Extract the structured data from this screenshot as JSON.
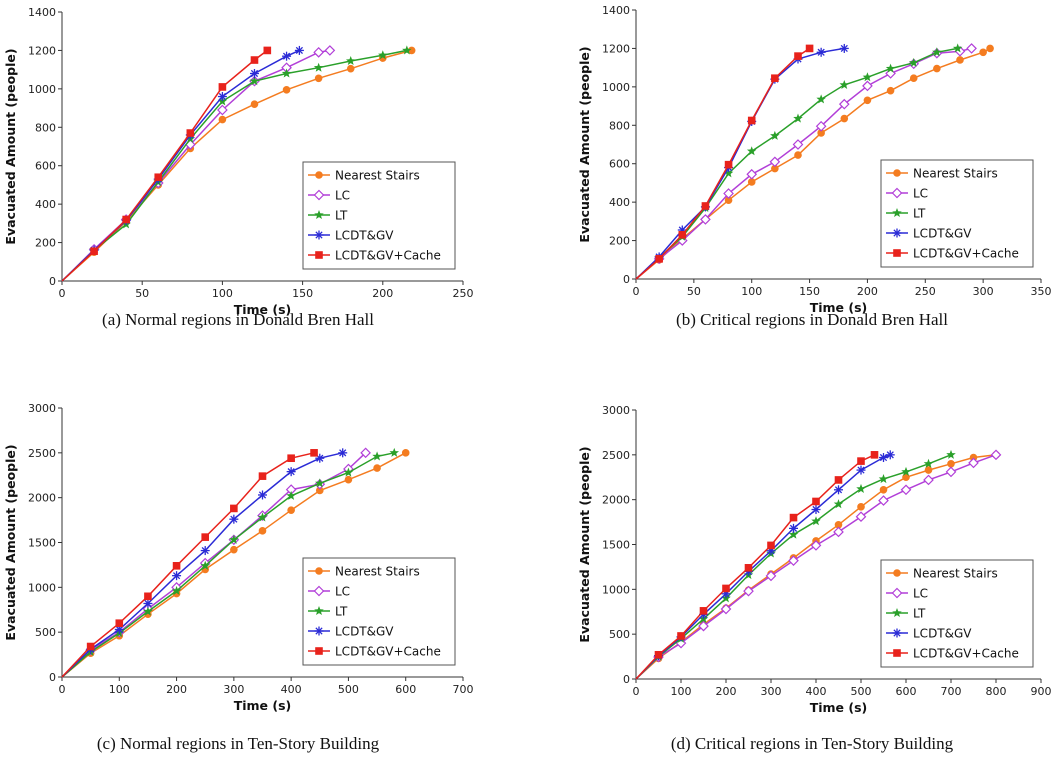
{
  "series_styles": [
    {
      "name": "Nearest Stairs",
      "color": "#f47c20",
      "marker": "circle"
    },
    {
      "name": "LC",
      "color": "#b23fd8",
      "marker": "diamond"
    },
    {
      "name": "LT",
      "color": "#2aa02a",
      "marker": "star"
    },
    {
      "name": "LCDT&GV",
      "color": "#2b2bd6",
      "marker": "asterisk"
    },
    {
      "name": "LCDT&GV+Cache",
      "color": "#e8221b",
      "marker": "square"
    }
  ],
  "chart_data": [
    {
      "type": "line",
      "caption": "(a) Normal regions in Donald Bren Hall",
      "xlabel": "Time (s)",
      "ylabel": "Evacuated Amount (people)",
      "xlim": [
        0,
        250
      ],
      "ylim": [
        0,
        1400
      ],
      "xticks": [
        0,
        50,
        100,
        150,
        200,
        250
      ],
      "yticks": [
        0,
        200,
        400,
        600,
        800,
        1000,
        1200,
        1400
      ],
      "grid": false,
      "legend": "bottom-right",
      "series": [
        {
          "name": "Nearest Stairs",
          "x": [
            0,
            20,
            40,
            60,
            80,
            100,
            120,
            140,
            160,
            180,
            200,
            218
          ],
          "y": [
            0,
            150,
            310,
            500,
            690,
            840,
            920,
            995,
            1055,
            1105,
            1160,
            1200
          ]
        },
        {
          "name": "LC",
          "x": [
            0,
            20,
            40,
            60,
            80,
            100,
            120,
            140,
            160,
            167
          ],
          "y": [
            0,
            165,
            320,
            510,
            710,
            890,
            1040,
            1110,
            1190,
            1200
          ]
        },
        {
          "name": "LT",
          "x": [
            0,
            20,
            40,
            60,
            80,
            100,
            120,
            140,
            160,
            180,
            200,
            215
          ],
          "y": [
            0,
            160,
            295,
            515,
            740,
            935,
            1040,
            1080,
            1110,
            1145,
            1175,
            1200
          ]
        },
        {
          "name": "LCDT&GV",
          "x": [
            0,
            20,
            40,
            60,
            80,
            100,
            120,
            140,
            148
          ],
          "y": [
            0,
            160,
            315,
            530,
            760,
            960,
            1080,
            1170,
            1200
          ]
        },
        {
          "name": "LCDT&GV+Cache",
          "x": [
            0,
            20,
            40,
            60,
            80,
            100,
            120,
            128
          ],
          "y": [
            0,
            155,
            320,
            540,
            770,
            1010,
            1150,
            1200
          ]
        }
      ]
    },
    {
      "type": "line",
      "caption": "(b) Critical regions in Donald Bren Hall",
      "xlabel": "Time (s)",
      "ylabel": "Evacuated Amount (people)",
      "xlim": [
        0,
        350
      ],
      "ylim": [
        0,
        1400
      ],
      "xticks": [
        0,
        50,
        100,
        150,
        200,
        250,
        300,
        350
      ],
      "yticks": [
        0,
        200,
        400,
        600,
        800,
        1000,
        1200,
        1400
      ],
      "grid": false,
      "legend": "bottom-right",
      "series": [
        {
          "name": "Nearest Stairs",
          "x": [
            0,
            20,
            40,
            60,
            80,
            100,
            120,
            140,
            160,
            180,
            200,
            220,
            240,
            260,
            280,
            300,
            306
          ],
          "y": [
            0,
            100,
            210,
            310,
            410,
            505,
            575,
            645,
            760,
            835,
            930,
            980,
            1045,
            1095,
            1140,
            1180,
            1200
          ]
        },
        {
          "name": "LC",
          "x": [
            0,
            20,
            40,
            60,
            80,
            100,
            120,
            140,
            160,
            180,
            200,
            220,
            240,
            260,
            280,
            290
          ],
          "y": [
            0,
            105,
            200,
            310,
            445,
            545,
            610,
            700,
            795,
            910,
            1005,
            1070,
            1120,
            1175,
            1185,
            1200
          ]
        },
        {
          "name": "LT",
          "x": [
            0,
            20,
            40,
            60,
            80,
            100,
            120,
            140,
            160,
            180,
            200,
            220,
            240,
            260,
            278
          ],
          "y": [
            0,
            110,
            220,
            370,
            550,
            665,
            745,
            835,
            935,
            1010,
            1050,
            1095,
            1125,
            1180,
            1200
          ]
        },
        {
          "name": "LCDT&GV",
          "x": [
            0,
            20,
            40,
            60,
            80,
            100,
            120,
            140,
            160,
            180
          ],
          "y": [
            0,
            115,
            255,
            375,
            580,
            820,
            1040,
            1145,
            1180,
            1200
          ]
        },
        {
          "name": "LCDT&GV+Cache",
          "x": [
            0,
            20,
            40,
            60,
            80,
            100,
            120,
            140,
            150
          ],
          "y": [
            0,
            105,
            230,
            380,
            595,
            825,
            1045,
            1160,
            1200
          ]
        }
      ]
    },
    {
      "type": "line",
      "caption": "(c) Normal regions in Ten-Story Building",
      "xlabel": "Time (s)",
      "ylabel": "Evacuated Amount (people)",
      "xlim": [
        0,
        700
      ],
      "ylim": [
        0,
        3000
      ],
      "xticks": [
        0,
        100,
        200,
        300,
        400,
        500,
        600,
        700
      ],
      "yticks": [
        0,
        500,
        1000,
        1500,
        2000,
        2500,
        3000
      ],
      "grid": false,
      "legend": "bottom-right",
      "series": [
        {
          "name": "Nearest Stairs",
          "x": [
            0,
            50,
            100,
            150,
            200,
            250,
            300,
            350,
            400,
            450,
            500,
            550,
            600
          ],
          "y": [
            0,
            265,
            460,
            700,
            930,
            1200,
            1420,
            1630,
            1860,
            2080,
            2200,
            2330,
            2500
          ]
        },
        {
          "name": "LC",
          "x": [
            0,
            50,
            100,
            150,
            200,
            250,
            300,
            350,
            400,
            450,
            500,
            530
          ],
          "y": [
            0,
            300,
            500,
            760,
            1000,
            1270,
            1530,
            1800,
            2090,
            2150,
            2320,
            2500
          ]
        },
        {
          "name": "LT",
          "x": [
            0,
            50,
            100,
            150,
            200,
            250,
            300,
            350,
            400,
            450,
            500,
            550,
            580
          ],
          "y": [
            0,
            280,
            490,
            730,
            960,
            1240,
            1530,
            1780,
            2020,
            2160,
            2280,
            2460,
            2500
          ]
        },
        {
          "name": "LCDT&GV",
          "x": [
            0,
            50,
            100,
            150,
            200,
            250,
            300,
            350,
            400,
            450,
            490
          ],
          "y": [
            0,
            310,
            530,
            820,
            1130,
            1410,
            1760,
            2030,
            2290,
            2440,
            2500
          ]
        },
        {
          "name": "LCDT&GV+Cache",
          "x": [
            0,
            50,
            100,
            150,
            200,
            250,
            300,
            350,
            400,
            440
          ],
          "y": [
            0,
            340,
            600,
            900,
            1240,
            1560,
            1880,
            2240,
            2440,
            2500
          ]
        }
      ]
    },
    {
      "type": "line",
      "caption": "(d) Critical regions in Ten-Story Building",
      "xlabel": "Time (s)",
      "ylabel": "Evacuated Amount (people)",
      "xlim": [
        0,
        900
      ],
      "ylim": [
        0,
        3000
      ],
      "xticks": [
        0,
        100,
        200,
        300,
        400,
        500,
        600,
        700,
        800,
        900
      ],
      "yticks": [
        0,
        500,
        1000,
        1500,
        2000,
        2500,
        3000
      ],
      "grid": false,
      "legend": "bottom-right",
      "series": [
        {
          "name": "Nearest Stairs",
          "x": [
            0,
            50,
            100,
            150,
            200,
            250,
            300,
            350,
            400,
            450,
            500,
            550,
            600,
            650,
            700,
            750,
            800
          ],
          "y": [
            0,
            230,
            410,
            610,
            790,
            990,
            1170,
            1350,
            1540,
            1720,
            1920,
            2110,
            2250,
            2330,
            2400,
            2470,
            2500
          ]
        },
        {
          "name": "LC",
          "x": [
            0,
            50,
            100,
            150,
            200,
            250,
            300,
            350,
            400,
            450,
            500,
            550,
            600,
            650,
            700,
            750,
            800
          ],
          "y": [
            0,
            245,
            400,
            590,
            780,
            980,
            1150,
            1320,
            1490,
            1640,
            1810,
            1990,
            2110,
            2220,
            2310,
            2410,
            2500
          ]
        },
        {
          "name": "LT",
          "x": [
            0,
            50,
            100,
            150,
            200,
            250,
            300,
            350,
            400,
            450,
            500,
            550,
            600,
            650,
            700
          ],
          "y": [
            0,
            250,
            450,
            670,
            900,
            1160,
            1400,
            1610,
            1760,
            1950,
            2120,
            2230,
            2310,
            2400,
            2500
          ]
        },
        {
          "name": "LCDT&GV",
          "x": [
            0,
            50,
            100,
            150,
            200,
            250,
            300,
            350,
            400,
            450,
            500,
            550,
            565
          ],
          "y": [
            0,
            260,
            470,
            720,
            950,
            1200,
            1430,
            1680,
            1890,
            2110,
            2330,
            2470,
            2500
          ]
        },
        {
          "name": "LCDT&GV+Cache",
          "x": [
            0,
            50,
            100,
            150,
            200,
            250,
            300,
            350,
            400,
            450,
            500,
            530
          ],
          "y": [
            0,
            270,
            480,
            760,
            1010,
            1240,
            1490,
            1800,
            1980,
            2220,
            2430,
            2500
          ]
        }
      ]
    }
  ]
}
